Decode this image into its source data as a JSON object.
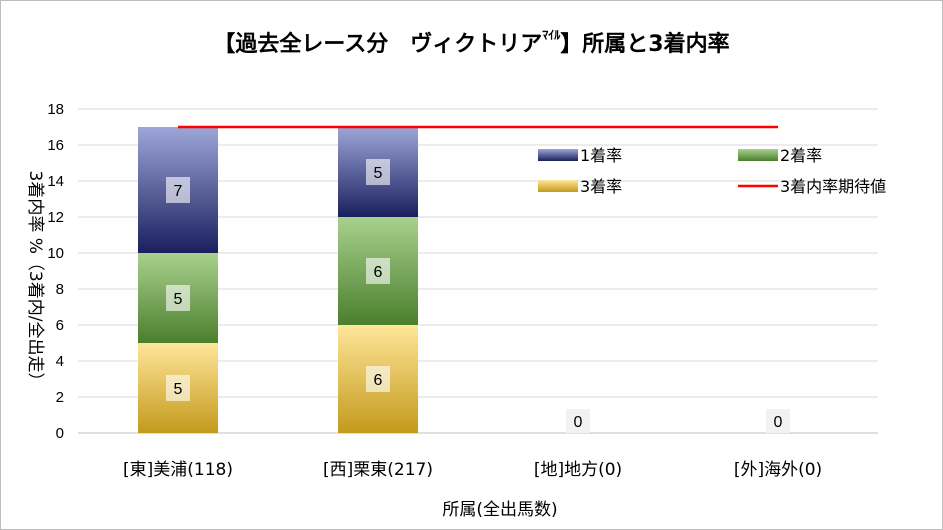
{
  "chart_data": {
    "type": "bar",
    "stacked": true,
    "title_main": "【過去全レース分　ヴィクトリア",
    "title_sup": "ﾏｲﾙ",
    "title_tail": "】所属と3着内率",
    "xlabel": "所属(全出馬数)",
    "ylabel": "3着内率 %（3着内/全出走）",
    "ylim": [
      0,
      18
    ],
    "yticks": [
      0,
      2,
      4,
      6,
      8,
      10,
      12,
      14,
      16,
      18
    ],
    "categories": [
      "[東]美浦(118)",
      "[西]栗東(217)",
      "[地]地方(0)",
      "[外]海外(0)"
    ],
    "series": [
      {
        "name": "3着率",
        "values": [
          5,
          6,
          0,
          0
        ],
        "color_top": "#ffe699",
        "color_bottom": "#c49a1c"
      },
      {
        "name": "2着率",
        "values": [
          5,
          6,
          0,
          0
        ],
        "color_top": "#a9d18e",
        "color_bottom": "#4a7f2c"
      },
      {
        "name": "1着率",
        "values": [
          7,
          5,
          0,
          0
        ],
        "color_top": "#9da6d8",
        "color_bottom": "#1a1f5e"
      }
    ],
    "data_labels": [
      {
        "category": 0,
        "values": [
          "5",
          "5",
          "7"
        ]
      },
      {
        "category": 1,
        "values": [
          "6",
          "6",
          "5"
        ]
      },
      {
        "category": 2,
        "total": "0"
      },
      {
        "category": 3,
        "total": "0"
      }
    ],
    "expected_line": {
      "name": "3着内率期待値",
      "value": 17,
      "color": "#ff0000"
    },
    "legend_order": [
      "1着率",
      "2着率",
      "3着率",
      "3着内率期待値"
    ],
    "legend_position": "upper-right inside plot",
    "grid": true
  }
}
